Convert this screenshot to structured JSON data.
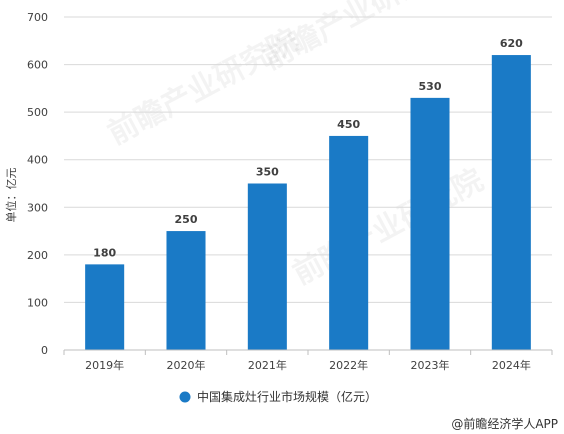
{
  "chart_data": {
    "type": "bar",
    "categories": [
      "2019年",
      "2020年",
      "2021年",
      "2022年",
      "2023年",
      "2024年"
    ],
    "series": [
      {
        "name": "中国集成灶行业市场规模（亿元）",
        "values": [
          180,
          250,
          350,
          450,
          530,
          620
        ],
        "color": "#1a7ac6"
      }
    ],
    "ylabel": "单位：亿元",
    "ylim": [
      0,
      700
    ],
    "yticks": [
      0,
      100,
      200,
      300,
      400,
      500,
      600,
      700
    ],
    "grid": true,
    "legend_position": "bottom-center"
  },
  "watermark": "前瞻产业研究院",
  "credit": "@前瞻经济学人APP"
}
